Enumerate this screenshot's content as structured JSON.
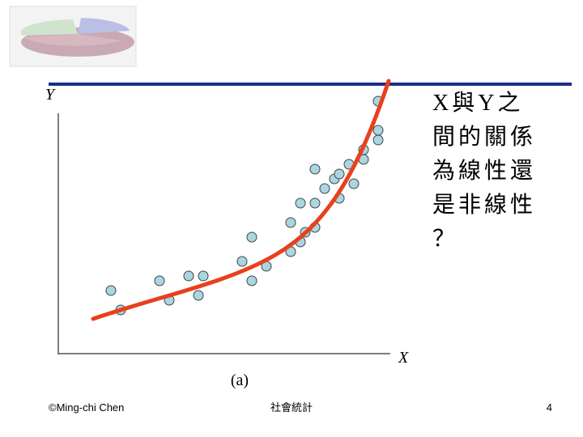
{
  "figure": {
    "y_label": "Y",
    "x_label": "X",
    "caption": "(a)"
  },
  "question": {
    "lines": [
      "X與Y之",
      "間的關係",
      "為線性還",
      "是非線性",
      "？"
    ]
  },
  "footer": {
    "author": "©Ming-chi Chen",
    "course": "社會統計",
    "page": "4"
  }
}
